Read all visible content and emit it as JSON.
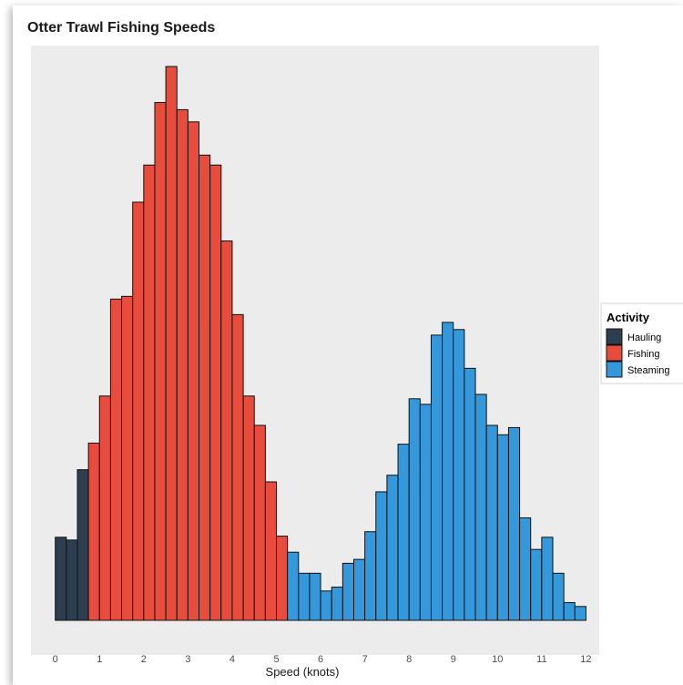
{
  "chart_data": {
    "type": "bar",
    "title": "Otter Trawl Fishing Speeds",
    "xlabel": "Speed (knots)",
    "ylabel": "",
    "xlim": [
      -0.55,
      12.3
    ],
    "ylim": [
      0,
      1.0
    ],
    "xticks": [
      0,
      1,
      2,
      3,
      4,
      5,
      6,
      7,
      8,
      9,
      10,
      11,
      12
    ],
    "grid": false,
    "legend": {
      "title": "Activity",
      "placement": "right"
    },
    "bin_width": 0.25,
    "series": [
      {
        "name": "Hauling",
        "color": "#2c3e50",
        "bins": [
          {
            "x0": 0.0,
            "value": 0.15
          },
          {
            "x0": 0.25,
            "value": 0.145
          },
          {
            "x0": 0.5,
            "value": 0.272
          }
        ]
      },
      {
        "name": "Fishing",
        "color": "#e74c3c",
        "bins": [
          {
            "x0": 0.75,
            "value": 0.32
          },
          {
            "x0": 1.0,
            "value": 0.405
          },
          {
            "x0": 1.25,
            "value": 0.58
          },
          {
            "x0": 1.5,
            "value": 0.585
          },
          {
            "x0": 1.75,
            "value": 0.755
          },
          {
            "x0": 2.0,
            "value": 0.822
          },
          {
            "x0": 2.25,
            "value": 0.935
          },
          {
            "x0": 2.5,
            "value": 1.0
          },
          {
            "x0": 2.75,
            "value": 0.922
          },
          {
            "x0": 3.0,
            "value": 0.9
          },
          {
            "x0": 3.25,
            "value": 0.84
          },
          {
            "x0": 3.5,
            "value": 0.822
          },
          {
            "x0": 3.75,
            "value": 0.685
          },
          {
            "x0": 4.0,
            "value": 0.552
          },
          {
            "x0": 4.25,
            "value": 0.405
          },
          {
            "x0": 4.5,
            "value": 0.352
          },
          {
            "x0": 4.75,
            "value": 0.25
          },
          {
            "x0": 5.0,
            "value": 0.152
          }
        ]
      },
      {
        "name": "Steaming",
        "color": "#3498db",
        "bins": [
          {
            "x0": 5.25,
            "value": 0.123
          },
          {
            "x0": 5.5,
            "value": 0.085
          },
          {
            "x0": 5.75,
            "value": 0.085
          },
          {
            "x0": 6.0,
            "value": 0.053
          },
          {
            "x0": 6.25,
            "value": 0.06
          },
          {
            "x0": 6.5,
            "value": 0.103
          },
          {
            "x0": 6.75,
            "value": 0.11
          },
          {
            "x0": 7.0,
            "value": 0.16
          },
          {
            "x0": 7.25,
            "value": 0.232
          },
          {
            "x0": 7.5,
            "value": 0.262
          },
          {
            "x0": 7.75,
            "value": 0.318
          },
          {
            "x0": 8.0,
            "value": 0.4
          },
          {
            "x0": 8.25,
            "value": 0.39
          },
          {
            "x0": 8.5,
            "value": 0.515
          },
          {
            "x0": 8.75,
            "value": 0.538
          },
          {
            "x0": 9.0,
            "value": 0.525
          },
          {
            "x0": 9.25,
            "value": 0.455
          },
          {
            "x0": 9.5,
            "value": 0.408
          },
          {
            "x0": 9.75,
            "value": 0.352
          },
          {
            "x0": 10.0,
            "value": 0.335
          },
          {
            "x0": 10.25,
            "value": 0.348
          },
          {
            "x0": 10.5,
            "value": 0.185
          },
          {
            "x0": 10.75,
            "value": 0.128
          },
          {
            "x0": 11.0,
            "value": 0.15
          },
          {
            "x0": 11.25,
            "value": 0.085
          },
          {
            "x0": 11.5,
            "value": 0.032
          },
          {
            "x0": 11.75,
            "value": 0.025
          }
        ]
      }
    ]
  }
}
